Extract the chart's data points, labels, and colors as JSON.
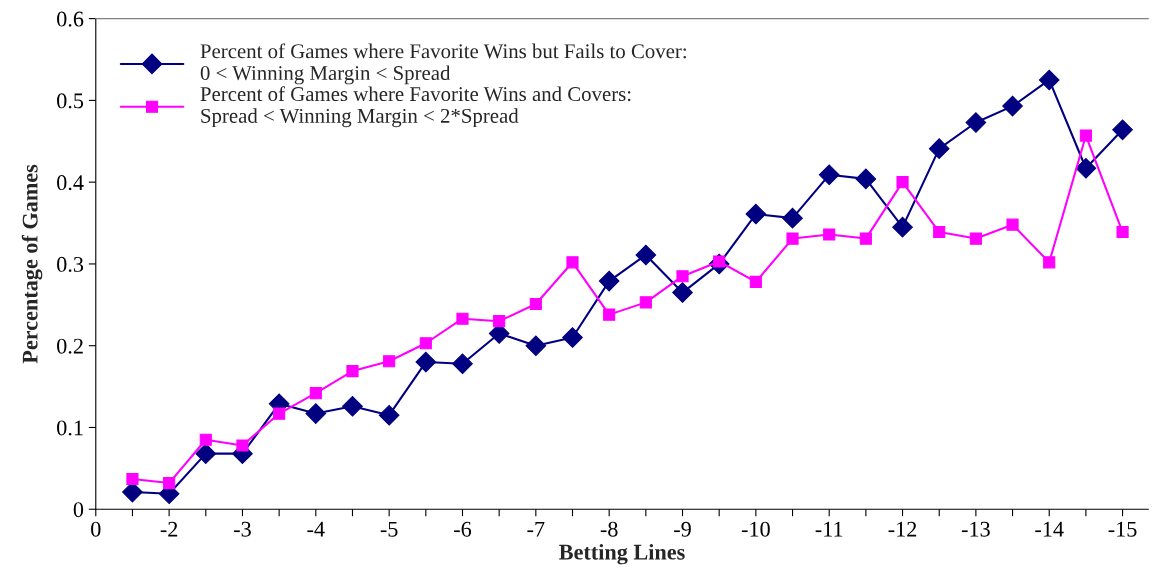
{
  "chart_data": {
    "type": "line",
    "xlabel": "Betting Lines",
    "ylabel": "Percentage of Games",
    "categories": [
      "0",
      null,
      "-2",
      null,
      "-3",
      null,
      "-4",
      null,
      "-5",
      null,
      "-6",
      null,
      "-7",
      null,
      "-8",
      null,
      "-9",
      null,
      "-10",
      null,
      "-11",
      null,
      "-12",
      null,
      "-13",
      null,
      "-14",
      null,
      "-15"
    ],
    "series": [
      {
        "name": "Percent of Games where Favorite Wins but Fails to Cover:\n0 < Winning Margin < Spread",
        "color": "#000080",
        "marker": "diamond",
        "values": [
          null,
          0.021,
          0.019,
          0.068,
          0.068,
          0.129,
          0.117,
          0.126,
          0.115,
          0.18,
          0.178,
          0.215,
          0.2,
          0.21,
          0.279,
          0.311,
          0.265,
          0.3,
          0.361,
          0.356,
          0.409,
          0.404,
          0.345,
          0.441,
          0.473,
          0.493,
          0.525,
          0.417,
          0.464
        ]
      },
      {
        "name": "Percent of Games where Favorite Wins and Covers:\nSpread < Winning Margin < 2*Spread",
        "color": "#ff00ff",
        "marker": "square",
        "values": [
          null,
          0.037,
          0.032,
          0.085,
          0.078,
          0.117,
          0.142,
          0.169,
          0.181,
          0.203,
          0.233,
          0.23,
          0.251,
          0.302,
          0.238,
          0.253,
          0.285,
          0.303,
          0.278,
          0.331,
          0.336,
          0.331,
          0.4,
          0.339,
          0.331,
          0.348,
          0.302,
          0.457,
          0.339
        ]
      }
    ],
    "ylim": [
      0,
      0.6
    ],
    "yticks": [
      0,
      0.1,
      0.2,
      0.3,
      0.4,
      0.5,
      0.6
    ],
    "grid": false,
    "legend": "top left",
    "line_style": "solid"
  }
}
